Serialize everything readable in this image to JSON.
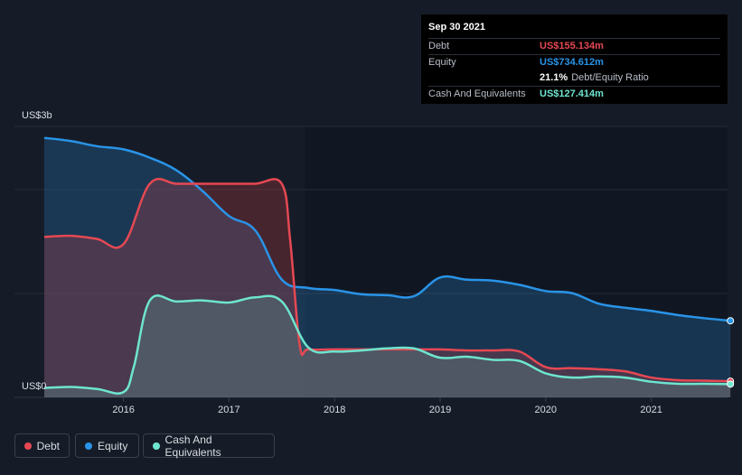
{
  "tooltip": {
    "date": "Sep 30 2021",
    "rows": [
      {
        "label": "Debt",
        "value": "US$155.134m",
        "color": "#e64853"
      },
      {
        "label": "Equity",
        "value": "US$734.612m",
        "color": "#2994e8"
      },
      {
        "label": "",
        "value": "21.1%",
        "suffix": "Debt/Equity Ratio",
        "color": "#ffffff"
      },
      {
        "label": "Cash And Equivalents",
        "value": "US$127.414m",
        "color": "#6ee5cf"
      }
    ]
  },
  "y_axis": {
    "top_label": "US$3b",
    "bottom_label": "US$0"
  },
  "legend": [
    {
      "label": "Debt",
      "color": "#e64853"
    },
    {
      "label": "Equity",
      "color": "#2994e8"
    },
    {
      "label": "Cash And Equivalents",
      "color": "#6ee5cf"
    }
  ],
  "chart_data": {
    "type": "area",
    "xlabel": "",
    "ylabel": "",
    "units": "US$ billions",
    "ylim": [
      0,
      2.6
    ],
    "xlim": [
      2015.25,
      2021.75
    ],
    "x_ticks": [
      2016,
      2017,
      2018,
      2019,
      2020,
      2021
    ],
    "grid": true,
    "legend_position": "bottom-left",
    "series": [
      {
        "name": "Debt",
        "color": "#e64853",
        "x": [
          2015.25,
          2015.5,
          2015.75,
          2016.0,
          2016.25,
          2016.5,
          2016.75,
          2017.0,
          2017.25,
          2017.5,
          2017.58,
          2017.67,
          2017.75,
          2018.0,
          2018.25,
          2018.5,
          2018.75,
          2019.0,
          2019.25,
          2019.5,
          2019.75,
          2020.0,
          2020.25,
          2020.5,
          2020.75,
          2021.0,
          2021.25,
          2021.5,
          2021.75
        ],
        "values": [
          1.54,
          1.55,
          1.52,
          1.47,
          2.05,
          2.05,
          2.05,
          2.05,
          2.05,
          2.05,
          1.5,
          0.5,
          0.46,
          0.46,
          0.46,
          0.46,
          0.46,
          0.46,
          0.45,
          0.45,
          0.44,
          0.29,
          0.28,
          0.27,
          0.25,
          0.19,
          0.165,
          0.16,
          0.155
        ]
      },
      {
        "name": "Equity",
        "color": "#2994e8",
        "x": [
          2015.25,
          2015.5,
          2015.75,
          2016.0,
          2016.25,
          2016.5,
          2016.75,
          2017.0,
          2017.25,
          2017.5,
          2017.75,
          2018.0,
          2018.25,
          2018.5,
          2018.75,
          2019.0,
          2019.25,
          2019.5,
          2019.75,
          2020.0,
          2020.25,
          2020.5,
          2020.75,
          2021.0,
          2021.25,
          2021.5,
          2021.75
        ],
        "values": [
          2.49,
          2.46,
          2.41,
          2.38,
          2.3,
          2.18,
          1.98,
          1.74,
          1.6,
          1.13,
          1.05,
          1.03,
          0.99,
          0.98,
          0.97,
          1.15,
          1.13,
          1.12,
          1.08,
          1.02,
          1.0,
          0.9,
          0.86,
          0.83,
          0.79,
          0.76,
          0.735
        ]
      },
      {
        "name": "Cash And Equivalents",
        "color": "#6ee5cf",
        "x": [
          2015.25,
          2015.5,
          2015.75,
          2016.0,
          2016.1,
          2016.25,
          2016.5,
          2016.75,
          2017.0,
          2017.25,
          2017.5,
          2017.75,
          2018.0,
          2018.25,
          2018.5,
          2018.75,
          2019.0,
          2019.25,
          2019.5,
          2019.75,
          2020.0,
          2020.25,
          2020.5,
          2020.75,
          2021.0,
          2021.25,
          2021.5,
          2021.75
        ],
        "values": [
          0.09,
          0.1,
          0.08,
          0.05,
          0.3,
          0.93,
          0.92,
          0.93,
          0.91,
          0.96,
          0.92,
          0.48,
          0.44,
          0.45,
          0.47,
          0.47,
          0.38,
          0.39,
          0.36,
          0.35,
          0.23,
          0.19,
          0.2,
          0.19,
          0.15,
          0.13,
          0.13,
          0.127
        ]
      }
    ]
  }
}
